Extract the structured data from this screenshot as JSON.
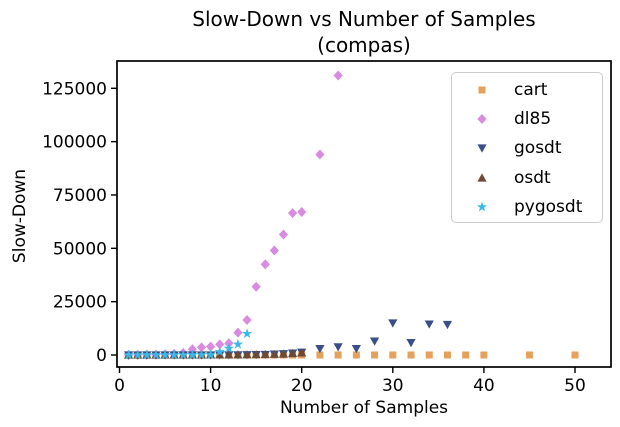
{
  "figure": {
    "title_line1": "Slow-Down vs Number of Samples",
    "title_line2": "(compas)",
    "xlabel": "Number of Samples",
    "ylabel": "Slow-Down"
  },
  "chart_data": {
    "type": "scatter",
    "title": "Slow-Down vs Number of Samples (compas)",
    "xlabel": "Number of Samples",
    "ylabel": "Slow-Down",
    "xlim": [
      -1.5,
      54
    ],
    "ylim": [
      -6500,
      138000
    ],
    "x_ticks": [
      0,
      10,
      20,
      30,
      40,
      50
    ],
    "y_ticks": [
      0,
      25000,
      50000,
      75000,
      100000,
      125000
    ],
    "grid": false,
    "legend_position": "upper right",
    "series": [
      {
        "name": "cart",
        "label": "cart",
        "marker": "square",
        "color": "#E5A25C",
        "points": [
          [
            1,
            1
          ],
          [
            2,
            1
          ],
          [
            3,
            1
          ],
          [
            4,
            1
          ],
          [
            5,
            1
          ],
          [
            6,
            1
          ],
          [
            7,
            1
          ],
          [
            8,
            1
          ],
          [
            9,
            1
          ],
          [
            10,
            1
          ],
          [
            11,
            1
          ],
          [
            12,
            1
          ],
          [
            13,
            1
          ],
          [
            14,
            1
          ],
          [
            15,
            1
          ],
          [
            16,
            1
          ],
          [
            17,
            1
          ],
          [
            18,
            1
          ],
          [
            19,
            1
          ],
          [
            20,
            1
          ],
          [
            22,
            1
          ],
          [
            24,
            1
          ],
          [
            26,
            1
          ],
          [
            28,
            1
          ],
          [
            30,
            1
          ],
          [
            32,
            1
          ],
          [
            34,
            1
          ],
          [
            36,
            1
          ],
          [
            38,
            1
          ],
          [
            40,
            1
          ],
          [
            45,
            1
          ],
          [
            50,
            1
          ]
        ]
      },
      {
        "name": "dl85",
        "label": "dl85",
        "marker": "diamond",
        "color": "#D88BE0",
        "points": [
          [
            1,
            30
          ],
          [
            2,
            60
          ],
          [
            3,
            100
          ],
          [
            4,
            180
          ],
          [
            5,
            300
          ],
          [
            6,
            550
          ],
          [
            7,
            1000
          ],
          [
            8,
            2700
          ],
          [
            9,
            3600
          ],
          [
            10,
            3900
          ],
          [
            11,
            5000
          ],
          [
            12,
            5500
          ],
          [
            13,
            10500
          ],
          [
            14,
            16400
          ],
          [
            15,
            32000
          ],
          [
            16,
            42500
          ],
          [
            17,
            49000
          ],
          [
            18,
            56500
          ],
          [
            19,
            66500
          ],
          [
            20,
            67000
          ],
          [
            22,
            94000
          ],
          [
            24,
            131000
          ]
        ]
      },
      {
        "name": "gosdt",
        "label": "gosdt",
        "marker": "triangle-down",
        "color": "#3A4E87",
        "points": [
          [
            1,
            1
          ],
          [
            2,
            1
          ],
          [
            3,
            2
          ],
          [
            4,
            2
          ],
          [
            5,
            3
          ],
          [
            6,
            4
          ],
          [
            7,
            5
          ],
          [
            8,
            8
          ],
          [
            9,
            12
          ],
          [
            10,
            18
          ],
          [
            11,
            28
          ],
          [
            12,
            45
          ],
          [
            13,
            70
          ],
          [
            14,
            110
          ],
          [
            15,
            170
          ],
          [
            16,
            260
          ],
          [
            17,
            400
          ],
          [
            18,
            600
          ],
          [
            19,
            900
          ],
          [
            20,
            1300
          ],
          [
            22,
            3000
          ],
          [
            24,
            3800
          ],
          [
            26,
            3000
          ],
          [
            28,
            6500
          ],
          [
            30,
            15000
          ],
          [
            32,
            5800
          ],
          [
            34,
            14500
          ],
          [
            36,
            14300
          ]
        ]
      },
      {
        "name": "osdt",
        "label": "osdt",
        "marker": "triangle-up",
        "color": "#6C4A34",
        "points": [
          [
            1,
            1
          ],
          [
            2,
            1
          ],
          [
            3,
            2
          ],
          [
            4,
            2
          ],
          [
            5,
            3
          ],
          [
            6,
            4
          ],
          [
            7,
            6
          ],
          [
            8,
            9
          ],
          [
            9,
            14
          ],
          [
            10,
            20
          ],
          [
            11,
            30
          ],
          [
            12,
            45
          ],
          [
            13,
            70
          ],
          [
            14,
            100
          ],
          [
            15,
            150
          ],
          [
            16,
            220
          ],
          [
            17,
            330
          ],
          [
            18,
            480
          ],
          [
            19,
            700
          ],
          [
            20,
            1000
          ]
        ]
      },
      {
        "name": "pygosdt",
        "label": "pygosdt",
        "marker": "star",
        "color": "#38B9EA",
        "points": [
          [
            1,
            1
          ],
          [
            2,
            2
          ],
          [
            3,
            2
          ],
          [
            4,
            3
          ],
          [
            5,
            4
          ],
          [
            6,
            6
          ],
          [
            7,
            9
          ],
          [
            8,
            14
          ],
          [
            9,
            25
          ],
          [
            10,
            60
          ],
          [
            11,
            1500
          ],
          [
            12,
            3100
          ],
          [
            13,
            5000
          ],
          [
            14,
            10000
          ]
        ]
      }
    ]
  }
}
